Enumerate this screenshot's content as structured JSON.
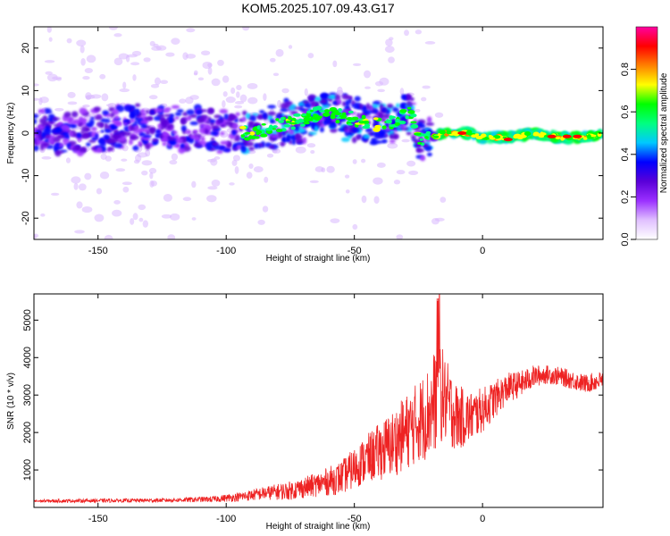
{
  "title": "KOM5.2025.107.09.43.G17",
  "chart_data": [
    {
      "type": "heatmap",
      "xlabel": "Height of straight line (km)",
      "ylabel": "Frequency (Hz)",
      "xlim": [
        -175,
        47
      ],
      "ylim": [
        -25,
        25
      ],
      "xticks": [
        -150,
        -100,
        -50,
        0
      ],
      "yticks": [
        -20,
        -10,
        0,
        10,
        20
      ],
      "tick_labels_x": [
        "-150",
        "-100",
        "-50",
        "0"
      ],
      "tick_labels_y": [
        "-20",
        "-10",
        "0",
        "10",
        "20"
      ],
      "colorbar": {
        "label": "Normalized spectral amplitude",
        "range": [
          0,
          1
        ],
        "ticks": [
          0.0,
          0.2,
          0.4,
          0.6,
          0.8
        ],
        "tick_labels": [
          "0.0",
          "0.2",
          "0.4",
          "0.6",
          "0.8"
        ],
        "colormap": [
          "#ffffff",
          "#e0c0ff",
          "#9b30ff",
          "#5a00d8",
          "#0000ff",
          "#00c8ff",
          "#00ff80",
          "#00ff00",
          "#ffff00",
          "#ff8000",
          "#ff0000",
          "#ff00a0"
        ]
      },
      "ridge_frequency": {
        "x": [
          -175,
          -160,
          -145,
          -130,
          -115,
          -100,
          -90,
          -80,
          -70,
          -62,
          -55,
          -48,
          -40,
          -33,
          -28,
          -24,
          -20,
          -15,
          -10,
          -5,
          0,
          10,
          20,
          30,
          40,
          46
        ],
        "y": [
          1,
          0,
          1,
          2,
          1,
          0,
          0,
          2,
          3,
          5,
          4,
          3,
          2,
          3,
          5,
          -2,
          -1,
          0,
          0,
          0,
          -1,
          -1,
          0,
          -1,
          -1,
          0
        ]
      },
      "grid": false
    },
    {
      "type": "line",
      "xlabel": "Height of straight line (km)",
      "ylabel": "SNR (10 * v/v)",
      "xlim": [
        -175,
        47
      ],
      "ylim": [
        0,
        5700
      ],
      "xticks": [
        -150,
        -100,
        -50,
        0
      ],
      "yticks": [
        1000,
        2000,
        3000,
        4000,
        5000
      ],
      "tick_labels_x": [
        "-150",
        "-100",
        "-50",
        "0"
      ],
      "tick_labels_y": [
        "1000",
        "2000",
        "3000",
        "4000",
        "5000"
      ],
      "series": [
        {
          "color": "#ee2222",
          "x": [
            -175,
            -150,
            -125,
            -105,
            -95,
            -85,
            -75,
            -65,
            -55,
            -45,
            -35,
            -25,
            -20,
            -17,
            -15,
            -10,
            -5,
            0,
            5,
            10,
            15,
            20,
            25,
            30,
            35,
            40,
            47
          ],
          "y": [
            170,
            180,
            190,
            220,
            280,
            380,
            450,
            600,
            800,
            1300,
            1700,
            2300,
            2600,
            3200,
            2900,
            2400,
            2400,
            2600,
            2900,
            3200,
            3300,
            3500,
            3550,
            3500,
            3400,
            3300,
            3400
          ],
          "spread": [
            40,
            50,
            50,
            80,
            120,
            180,
            250,
            320,
            450,
            650,
            900,
            1100,
            1300,
            1500,
            1200,
            900,
            700,
            600,
            500,
            400,
            350,
            300,
            250,
            250,
            250,
            250,
            250
          ]
        }
      ],
      "grid": false
    }
  ]
}
